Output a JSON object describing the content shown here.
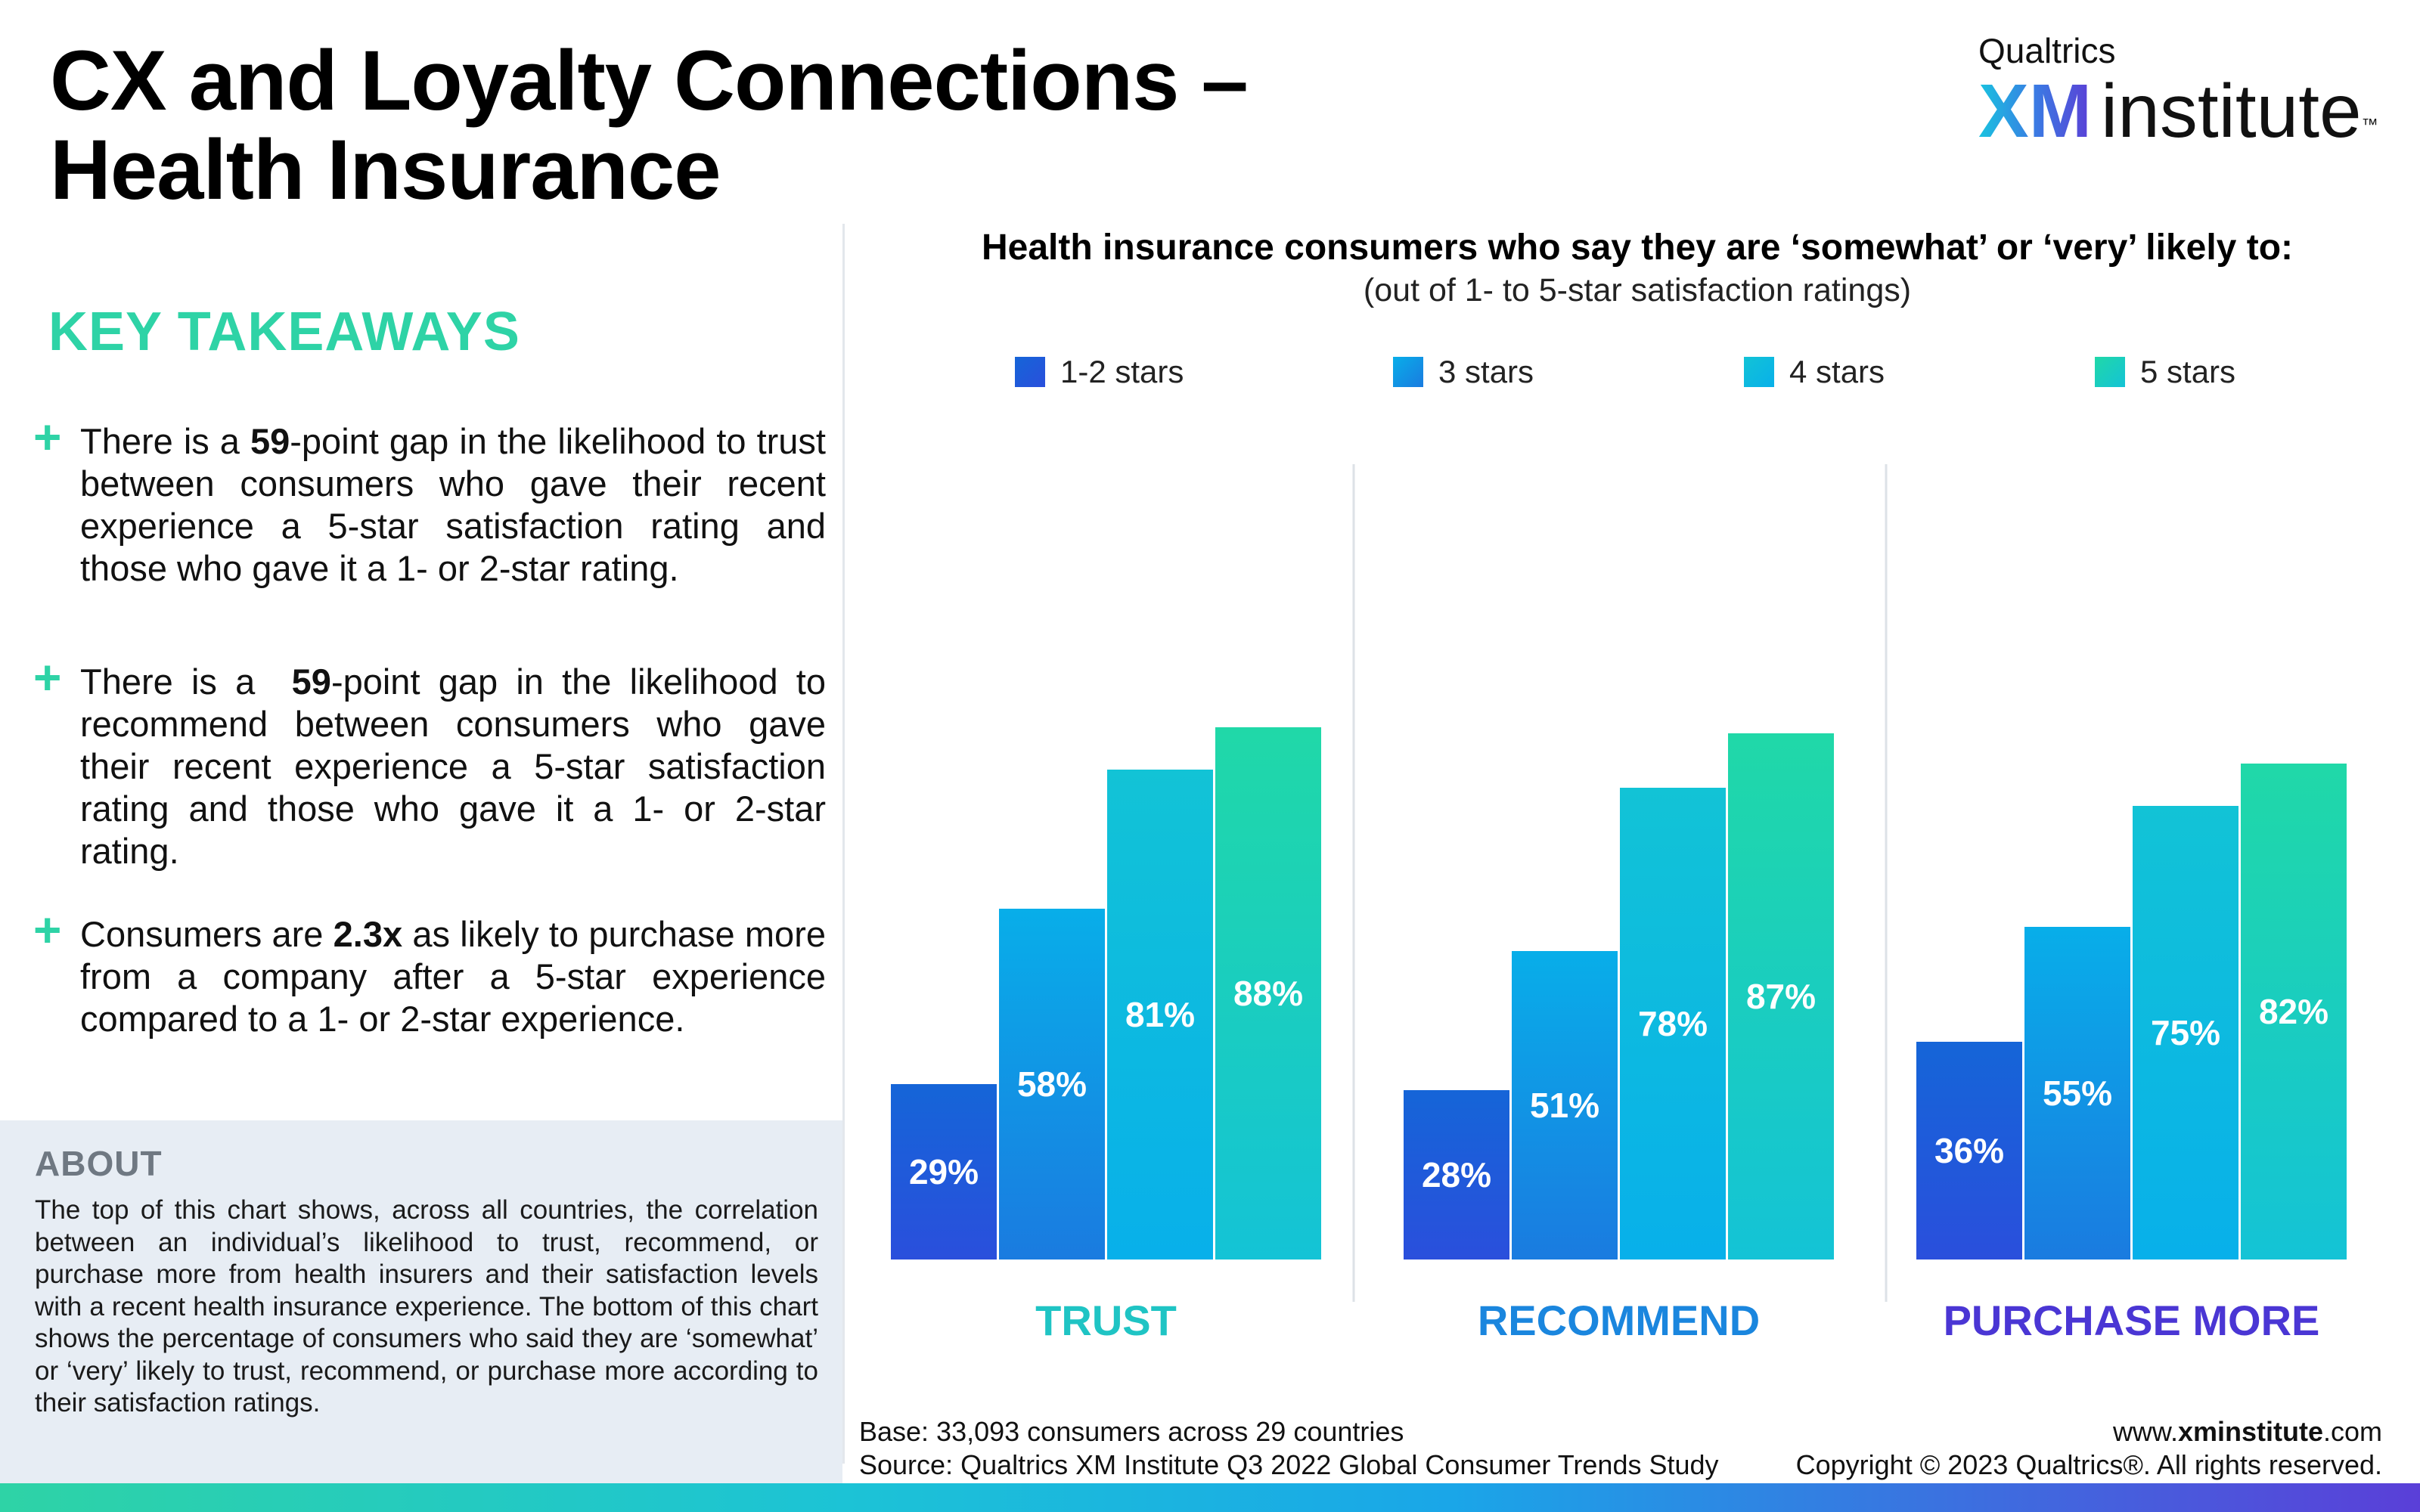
{
  "header": {
    "title_line1": "CX and Loyalty Connections –",
    "title_line2": "Health Insurance"
  },
  "logo": {
    "top_text": "Qualtrics",
    "xm_text": "XM",
    "institute_text": "institute",
    "tm": "™"
  },
  "takeaways": {
    "heading": "KEY TAKEAWAYS",
    "items": [
      {
        "before": "There is a ",
        "bold": "59",
        "after": "-point gap in the likelihood to trust between consumers who gave their recent experience a 5-star satisfaction rating and those who gave it a 1- or 2-star rating."
      },
      {
        "before": "There is a  ",
        "bold": "59",
        "after": "-point gap in the likelihood to recommend between consumers who gave their recent experience a 5-star satisfaction rating and those who gave it a 1- or 2-star rating."
      },
      {
        "before": "Consumers are ",
        "bold": "2.3x",
        "after": " as likely to purchase more from a company after a 5-star experience compared to a 1- or 2-star experience."
      }
    ]
  },
  "about": {
    "heading": "ABOUT",
    "text": "The top of this chart shows, across all countries, the correlation between an individual’s likelihood to trust, recommend, or purchase more from health insurers and their satisfaction levels with a recent health insurance experience. The bottom of this chart shows the percentage of consumers who said they are ‘somewhat’ or ‘very’ likely to trust, recommend, or purchase more according to their satisfaction ratings."
  },
  "chart_data": {
    "type": "bar",
    "title": "Health insurance consumers who say they are ‘somewhat’ or ‘very’ likely to:",
    "subtitle": "(out of 1- to 5-star satisfaction ratings)",
    "categories": [
      "TRUST",
      "RECOMMEND",
      "PURCHASE MORE"
    ],
    "category_colors": [
      "#1fc4c4",
      "#1a86de",
      "#4a36d4"
    ],
    "series": [
      {
        "name": "1-2 stars",
        "values": [
          29,
          28,
          36
        ],
        "color_top": "#1565d8",
        "color_bottom": "#2a4fdc"
      },
      {
        "name": "3 stars",
        "values": [
          58,
          51,
          55
        ],
        "color_top": "#08aee9",
        "color_bottom": "#1a7be0"
      },
      {
        "name": "4 stars",
        "values": [
          81,
          78,
          75
        ],
        "color_top": "#12c3d6",
        "color_bottom": "#08b0ea"
      },
      {
        "name": "5 stars",
        "values": [
          88,
          87,
          82
        ],
        "color_top": "#20d8a8",
        "color_bottom": "#14c3d6"
      }
    ],
    "value_suffix": "%",
    "ylim": [
      0,
      100
    ],
    "legend_position": "top",
    "grid": false
  },
  "footer": {
    "base": "Base: 33,093 consumers across 29 countries",
    "source": "Source: Qualtrics XM Institute Q3 2022 Global Consumer Trends Study",
    "url_prefix": "www.",
    "url_bold": "xminstitute",
    "url_suffix": ".com",
    "copyright": "Copyright © 2023 Qualtrics®. All rights reserved."
  }
}
